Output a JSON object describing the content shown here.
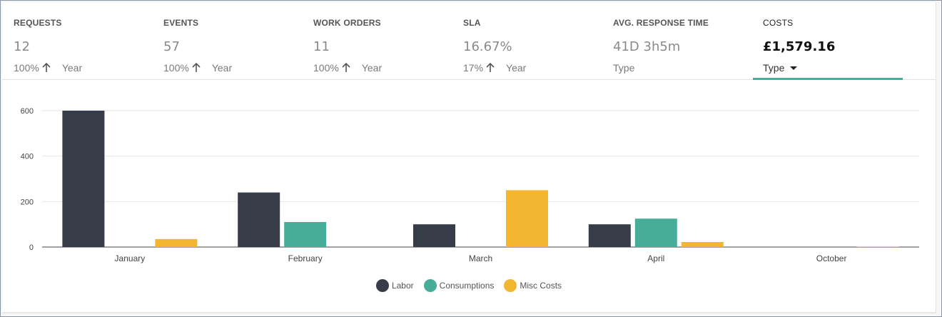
{
  "kpis": [
    {
      "label": "REQUESTS",
      "value": "12",
      "change": "100%",
      "period": "Year"
    },
    {
      "label": "EVENTS",
      "value": "57",
      "change": "100%",
      "period": "Year"
    },
    {
      "label": "WORK ORDERS",
      "value": "11",
      "change": "100%",
      "period": "Year"
    },
    {
      "label": "SLA",
      "value": "16.67%",
      "change": "17%",
      "period": "Year"
    },
    {
      "label": "AVG. RESPONSE TIME",
      "value": "41D 3h5m",
      "sub": "Type"
    },
    {
      "label": "COSTS",
      "value": "£1,579.16",
      "sub": "Type"
    }
  ],
  "icons": {
    "change": "arrow-up-icon",
    "dropdown": "caret-down-icon"
  },
  "colors": {
    "accent": "#47ad99",
    "labor": "#373d48",
    "consumptions": "#47ad99",
    "misc": "#f2b630"
  },
  "chart_data": {
    "type": "bar",
    "categories": [
      "January",
      "February",
      "March",
      "April",
      "October"
    ],
    "series": [
      {
        "name": "Labor",
        "color": "#373d48",
        "values": [
          600,
          240,
          100,
          100,
          0
        ]
      },
      {
        "name": "Consumptions",
        "color": "#47ad99",
        "values": [
          0,
          110,
          0,
          125,
          0
        ]
      },
      {
        "name": "Misc Costs",
        "color": "#f2b630",
        "values": [
          35,
          0,
          250,
          22,
          2
        ]
      }
    ],
    "yticks": [
      0,
      200,
      400,
      600
    ],
    "ylim": [
      0,
      600
    ],
    "grid": true,
    "legend": "bottom"
  }
}
